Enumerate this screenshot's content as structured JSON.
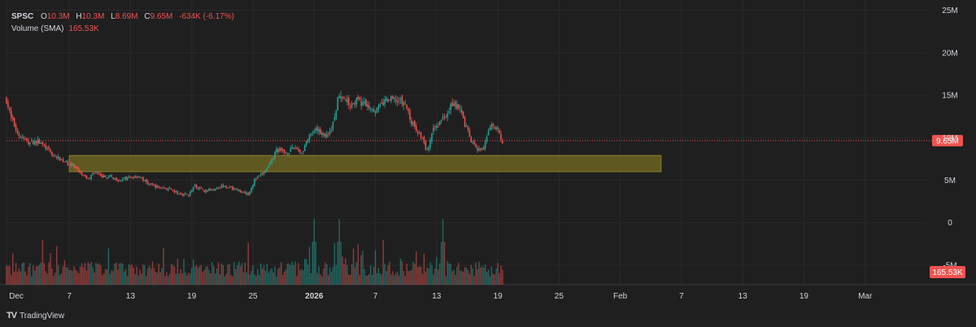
{
  "legend": {
    "symbol": "SPSC",
    "open_key": "O",
    "open": "10.3M",
    "high_key": "H",
    "high": "10.3M",
    "low_key": "L",
    "low": "8.69M",
    "close_key": "C",
    "close": "9.65M",
    "change": "-634K (-6.17%)",
    "volume_label": "Volume (SMA)",
    "volume_value": "165.53K"
  },
  "brand": {
    "name": "TradingView",
    "logo": "TV"
  },
  "colors": {
    "up": "#26a69a",
    "down": "#ef5350",
    "zone": "#6b6322",
    "last_price_line": "#ef5350"
  },
  "chart_data": {
    "type": "candlestick",
    "y_axis_ticks": [
      "25M",
      "20M",
      "15M",
      "10M",
      "5M",
      "0",
      "-5M"
    ],
    "y_tick_values": [
      25,
      20,
      15,
      10,
      5,
      0,
      -5
    ],
    "ylim": [
      -7.3,
      26.2
    ],
    "y_unit": "M",
    "x_axis_ticks": [
      "Dec",
      "7",
      "13",
      "19",
      "25",
      "2026",
      "7",
      "13",
      "19",
      "25",
      "Feb",
      "7",
      "13",
      "19",
      "Mar"
    ],
    "x_tick_bars": [
      0,
      40,
      79,
      118,
      157,
      196,
      235,
      274,
      313,
      352,
      391,
      430,
      469,
      508,
      547
    ],
    "last_price": 9.65,
    "last_price_label": "9.65M",
    "volume_sma_label": "165.53K",
    "support_zone": {
      "low": 6.0,
      "high": 7.9,
      "from_bar": 40,
      "to_bar": 417
    },
    "close_path": [
      [
        0,
        14.5
      ],
      [
        3,
        12.2
      ],
      [
        8,
        10.3
      ],
      [
        14,
        9.4
      ],
      [
        20,
        9.6
      ],
      [
        24,
        9.0
      ],
      [
        30,
        7.9
      ],
      [
        36,
        7.3
      ],
      [
        42,
        6.7
      ],
      [
        48,
        5.6
      ],
      [
        52,
        5.1
      ],
      [
        56,
        6.0
      ],
      [
        60,
        5.4
      ],
      [
        66,
        5.4
      ],
      [
        72,
        5.0
      ],
      [
        78,
        5.3
      ],
      [
        84,
        5.5
      ],
      [
        90,
        4.6
      ],
      [
        96,
        4.2
      ],
      [
        102,
        4.0
      ],
      [
        110,
        3.4
      ],
      [
        116,
        3.3
      ],
      [
        120,
        4.3
      ],
      [
        126,
        3.7
      ],
      [
        132,
        4.0
      ],
      [
        138,
        4.4
      ],
      [
        144,
        4.0
      ],
      [
        150,
        3.7
      ],
      [
        154,
        3.4
      ],
      [
        158,
        5.0
      ],
      [
        164,
        5.9
      ],
      [
        168,
        6.9
      ],
      [
        172,
        8.6
      ],
      [
        178,
        8.2
      ],
      [
        184,
        8.9
      ],
      [
        188,
        8.2
      ],
      [
        192,
        9.9
      ],
      [
        198,
        10.9
      ],
      [
        204,
        10.2
      ],
      [
        208,
        11.6
      ],
      [
        212,
        15.4
      ],
      [
        218,
        14.0
      ],
      [
        224,
        14.3
      ],
      [
        230,
        13.8
      ],
      [
        236,
        13.3
      ],
      [
        242,
        14.4
      ],
      [
        248,
        14.5
      ],
      [
        254,
        14.0
      ],
      [
        258,
        11.8
      ],
      [
        264,
        10.2
      ],
      [
        268,
        8.4
      ],
      [
        272,
        10.9
      ],
      [
        278,
        12.3
      ],
      [
        284,
        14.0
      ],
      [
        288,
        13.8
      ],
      [
        292,
        11.6
      ],
      [
        296,
        9.6
      ],
      [
        300,
        8.5
      ],
      [
        304,
        8.7
      ],
      [
        308,
        11.3
      ],
      [
        312,
        11.1
      ],
      [
        316,
        9.65
      ]
    ],
    "volume_peak_bars": [
      212,
      196,
      278
    ]
  }
}
